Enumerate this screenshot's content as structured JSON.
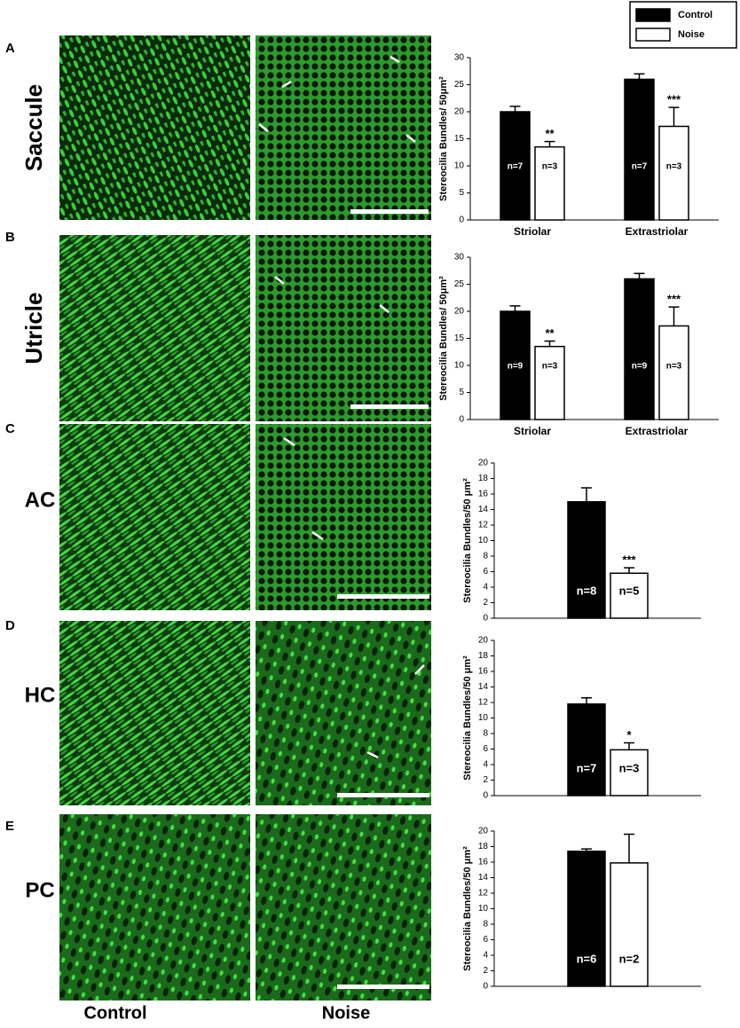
{
  "columns": [
    "Control",
    "Noise"
  ],
  "chart_data": [
    {
      "type": "bar",
      "panel": "A",
      "row_label": "Saccule",
      "ylabel": "Stereocilia Bundles/ 50μm²",
      "categories": [
        "Striolar",
        "Extrastriolar"
      ],
      "ylim": [
        0,
        30
      ],
      "yticks": [
        0,
        5,
        10,
        15,
        20,
        25,
        30
      ],
      "legend": "top-right",
      "series": [
        {
          "name": "Control",
          "color": "#000000",
          "values": [
            20,
            26
          ],
          "errors": [
            1,
            1
          ],
          "n_labels": [
            "n=7",
            "n=7"
          ],
          "significance": [
            null,
            null
          ]
        },
        {
          "name": "Noise",
          "color": "#ffffff",
          "values": [
            13.5,
            17.3
          ],
          "errors": [
            1,
            3.5
          ],
          "n_labels": [
            "n=3",
            "n=3"
          ],
          "significance": [
            "**",
            "***"
          ]
        }
      ]
    },
    {
      "type": "bar",
      "panel": "B",
      "row_label": "Utricle",
      "ylabel": "Stereocilia Bundles/ 50μm²",
      "categories": [
        "Striolar",
        "Extrastriolar"
      ],
      "ylim": [
        0,
        30
      ],
      "yticks": [
        0,
        5,
        10,
        15,
        20,
        25,
        30
      ],
      "series": [
        {
          "name": "Control",
          "color": "#000000",
          "values": [
            20,
            26
          ],
          "errors": [
            1,
            1
          ],
          "n_labels": [
            "n=9",
            "n=9"
          ],
          "significance": [
            null,
            null
          ]
        },
        {
          "name": "Noise",
          "color": "#ffffff",
          "values": [
            13.5,
            17.3
          ],
          "errors": [
            1,
            3.5
          ],
          "n_labels": [
            "n=3",
            "n=3"
          ],
          "significance": [
            "**",
            "***"
          ]
        }
      ]
    },
    {
      "type": "bar",
      "panel": "C",
      "row_label": "AC",
      "ylabel": "Stereocilia Bundles/50 μm²",
      "categories": [
        null
      ],
      "ylim": [
        0,
        20
      ],
      "yticks": [
        0,
        2,
        4,
        6,
        8,
        10,
        12,
        14,
        16,
        18,
        20
      ],
      "series": [
        {
          "name": "Control",
          "color": "#000000",
          "values": [
            15
          ],
          "errors": [
            1.8
          ],
          "n_labels": [
            "n=8"
          ],
          "significance": [
            null
          ]
        },
        {
          "name": "Noise",
          "color": "#ffffff",
          "values": [
            5.8
          ],
          "errors": [
            0.7
          ],
          "n_labels": [
            "n=5"
          ],
          "significance": [
            "***"
          ]
        }
      ]
    },
    {
      "type": "bar",
      "panel": "D",
      "row_label": "HC",
      "ylabel": "Stereocilia Bundles/50 μm²",
      "categories": [
        null
      ],
      "ylim": [
        0,
        20
      ],
      "yticks": [
        0,
        2,
        4,
        6,
        8,
        10,
        12,
        14,
        16,
        18,
        20
      ],
      "series": [
        {
          "name": "Control",
          "color": "#000000",
          "values": [
            11.8
          ],
          "errors": [
            0.8
          ],
          "n_labels": [
            "n=7"
          ],
          "significance": [
            null
          ]
        },
        {
          "name": "Noise",
          "color": "#ffffff",
          "values": [
            5.9
          ],
          "errors": [
            0.9
          ],
          "n_labels": [
            "n=3"
          ],
          "significance": [
            "*"
          ]
        }
      ]
    },
    {
      "type": "bar",
      "panel": "E",
      "row_label": "PC",
      "ylabel": "Stereocilia Bundles/50 μm²",
      "categories": [
        null
      ],
      "ylim": [
        0,
        20
      ],
      "yticks": [
        0,
        2,
        4,
        6,
        8,
        10,
        12,
        14,
        16,
        18,
        20
      ],
      "series": [
        {
          "name": "Control",
          "color": "#000000",
          "values": [
            17.4
          ],
          "errors": [
            0.3
          ],
          "n_labels": [
            "n=6"
          ],
          "significance": [
            null
          ]
        },
        {
          "name": "Noise",
          "color": "#ffffff",
          "values": [
            15.9
          ],
          "errors": [
            3.7
          ],
          "n_labels": [
            "n=2"
          ],
          "significance": [
            null
          ]
        }
      ]
    }
  ]
}
